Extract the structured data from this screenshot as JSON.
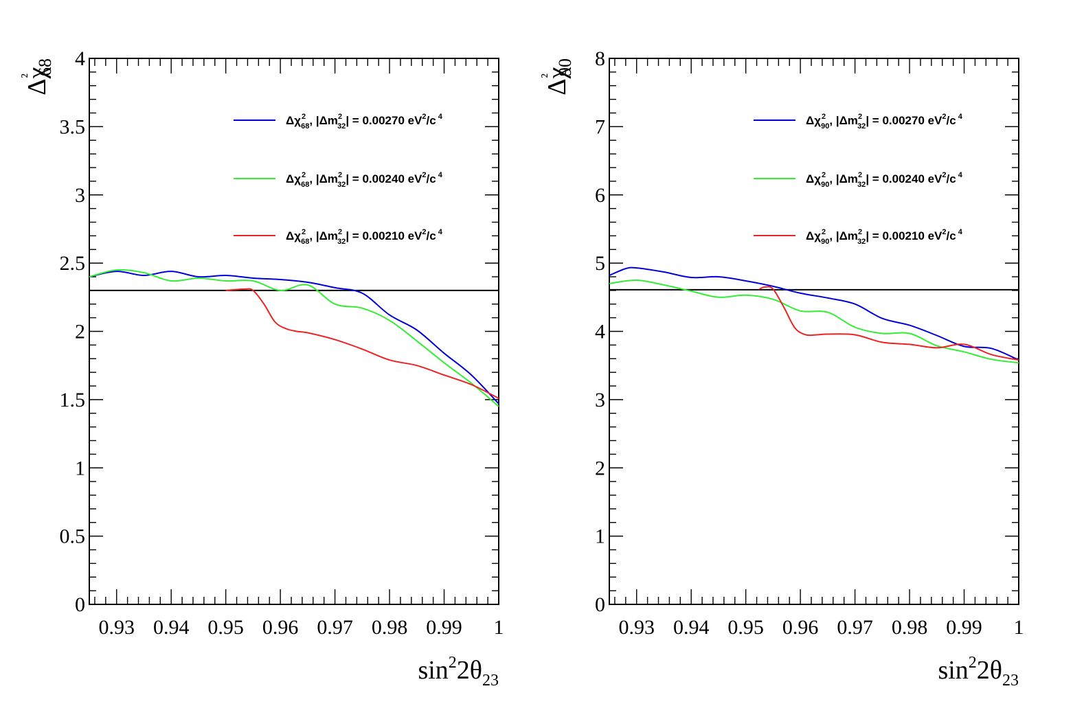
{
  "chart_data": [
    {
      "type": "line",
      "ylabel": "Δχ²68",
      "xlabel": "sin²2θ23",
      "xlim": [
        0.925,
        1.0
      ],
      "ylim": [
        0,
        4
      ],
      "xticks": [
        "0.93",
        "0.94",
        "0.95",
        "0.96",
        "0.97",
        "0.98",
        "0.99",
        "1"
      ],
      "yticks": [
        "0",
        "0.5",
        "1",
        "1.5",
        "2",
        "2.5",
        "3",
        "3.5",
        "4"
      ],
      "threshold": 2.3,
      "legend_position": "top-right",
      "series": [
        {
          "name": "Δχ²68, |Δm²32| = 0.00270 eV²/c⁴",
          "color": "#0000dd",
          "x": [
            0.925,
            0.93,
            0.935,
            0.94,
            0.945,
            0.95,
            0.955,
            0.96,
            0.965,
            0.97,
            0.975,
            0.98,
            0.985,
            0.99,
            0.995,
            1.0
          ],
          "y": [
            2.4,
            2.44,
            2.41,
            2.44,
            2.4,
            2.41,
            2.39,
            2.38,
            2.36,
            2.32,
            2.28,
            2.12,
            2.01,
            1.84,
            1.68,
            1.47
          ]
        },
        {
          "name": "Δχ²68, |Δm²32| = 0.00240 eV²/c⁴",
          "color": "#33ee33",
          "x": [
            0.925,
            0.93,
            0.935,
            0.94,
            0.945,
            0.95,
            0.955,
            0.96,
            0.965,
            0.97,
            0.975,
            0.98,
            0.985,
            0.99,
            0.995,
            1.0
          ],
          "y": [
            2.4,
            2.45,
            2.43,
            2.37,
            2.39,
            2.37,
            2.37,
            2.3,
            2.34,
            2.2,
            2.17,
            2.08,
            1.93,
            1.77,
            1.62,
            1.45
          ]
        },
        {
          "name": "Δχ²68, |Δm²32| = 0.00210 eV²/c⁴",
          "color": "#ee2222",
          "x": [
            0.95,
            0.9535,
            0.955,
            0.957,
            0.959,
            0.961,
            0.963,
            0.965,
            0.97,
            0.975,
            0.98,
            0.985,
            0.99,
            0.995,
            1.0
          ],
          "y": [
            2.3,
            2.31,
            2.3,
            2.2,
            2.07,
            2.02,
            2.0,
            1.99,
            1.94,
            1.87,
            1.79,
            1.75,
            1.68,
            1.61,
            1.51
          ]
        }
      ]
    },
    {
      "type": "line",
      "ylabel": "Δχ²90",
      "xlabel": "sin²2θ23",
      "xlim": [
        0.925,
        1.0
      ],
      "ylim": [
        0,
        8
      ],
      "xticks": [
        "0.93",
        "0.94",
        "0.95",
        "0.96",
        "0.97",
        "0.98",
        "0.99",
        "1"
      ],
      "yticks": [
        "0",
        "1",
        "2",
        "3",
        "4",
        "5",
        "6",
        "7",
        "8"
      ],
      "threshold": 4.61,
      "legend_position": "top-right",
      "series": [
        {
          "name": "Δχ²90, |Δm²32| = 0.00270 eV²/c⁴",
          "color": "#0000dd",
          "x": [
            0.925,
            0.928,
            0.93,
            0.935,
            0.94,
            0.945,
            0.95,
            0.955,
            0.96,
            0.965,
            0.97,
            0.975,
            0.98,
            0.985,
            0.99,
            0.995,
            1.0
          ],
          "y": [
            4.82,
            4.92,
            4.93,
            4.87,
            4.79,
            4.8,
            4.74,
            4.66,
            4.56,
            4.49,
            4.4,
            4.19,
            4.09,
            3.94,
            3.78,
            3.75,
            3.58
          ]
        },
        {
          "name": "Δχ²90, |Δm²32| = 0.00240 eV²/c⁴",
          "color": "#33ee33",
          "x": [
            0.925,
            0.93,
            0.935,
            0.94,
            0.945,
            0.95,
            0.955,
            0.96,
            0.965,
            0.97,
            0.975,
            0.98,
            0.985,
            0.99,
            0.995,
            1.0
          ],
          "y": [
            4.7,
            4.75,
            4.68,
            4.59,
            4.5,
            4.53,
            4.47,
            4.3,
            4.28,
            4.06,
            3.97,
            3.97,
            3.79,
            3.7,
            3.59,
            3.54
          ]
        },
        {
          "name": "Δχ²90, |Δm²32| = 0.00210 eV²/c⁴",
          "color": "#ee2222",
          "x": [
            0.9525,
            0.9535,
            0.955,
            0.957,
            0.959,
            0.961,
            0.963,
            0.965,
            0.97,
            0.975,
            0.98,
            0.985,
            0.99,
            0.995,
            1.0
          ],
          "y": [
            4.62,
            4.65,
            4.62,
            4.35,
            4.05,
            3.95,
            3.95,
            3.96,
            3.95,
            3.84,
            3.81,
            3.76,
            3.81,
            3.66,
            3.58
          ]
        }
      ]
    }
  ]
}
